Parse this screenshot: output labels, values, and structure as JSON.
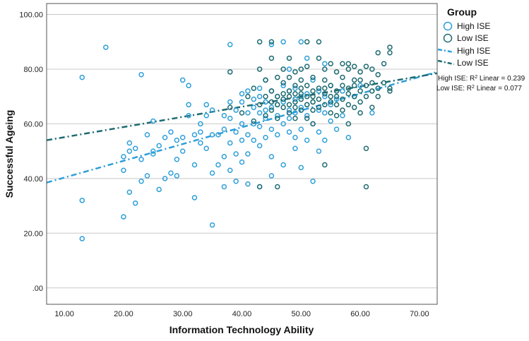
{
  "chart_data": {
    "type": "scatter",
    "xlabel": "Information Technology Ability",
    "ylabel": "Successful Ageing",
    "xlim": [
      7,
      73
    ],
    "ylim": [
      -6,
      104
    ],
    "x_ticks": [
      "10.00",
      "20.00",
      "30.00",
      "40.00",
      "50.00",
      "60.00",
      "70.00"
    ],
    "y_ticks": [
      ".00",
      "20.00",
      "40.00",
      "60.00",
      "80.00",
      "100.00"
    ],
    "grid": "horizontal",
    "legend_placement": "top-right",
    "legend": {
      "title": "Group",
      "items": [
        "High ISE",
        "Low ISE",
        "High ISE",
        "Low ISE"
      ]
    },
    "annotations": {
      "high_prefix": "High ISE: R",
      "low_prefix": "Low ISE: R",
      "sup": "2",
      "high_suffix": " Linear = 0.239",
      "low_suffix": " Linear = 0.077"
    },
    "colors": {
      "high": "#2e9fd9",
      "low": "#1e6b70",
      "grid": "#c8c8c8"
    },
    "fit_lines": [
      {
        "name": "High ISE",
        "x": [
          7,
          73
        ],
        "y": [
          38.5,
          79
        ]
      },
      {
        "name": "Low ISE",
        "x": [
          7,
          73
        ],
        "y": [
          54,
          78.5
        ]
      }
    ],
    "series": [
      {
        "name": "High ISE",
        "points": [
          [
            13,
            77
          ],
          [
            13,
            32
          ],
          [
            13,
            18
          ],
          [
            17,
            88
          ],
          [
            20,
            48
          ],
          [
            20,
            43
          ],
          [
            20,
            26
          ],
          [
            21,
            53
          ],
          [
            21,
            35
          ],
          [
            21,
            50
          ],
          [
            22,
            31
          ],
          [
            22,
            51
          ],
          [
            23,
            78
          ],
          [
            23,
            39
          ],
          [
            23,
            47
          ],
          [
            24,
            56
          ],
          [
            24,
            41
          ],
          [
            25,
            50
          ],
          [
            25,
            61
          ],
          [
            25,
            49
          ],
          [
            26,
            52
          ],
          [
            26,
            36
          ],
          [
            27,
            40
          ],
          [
            27,
            55
          ],
          [
            28,
            42
          ],
          [
            28,
            57
          ],
          [
            29,
            47
          ],
          [
            29,
            54
          ],
          [
            29,
            41
          ],
          [
            30,
            76
          ],
          [
            30,
            50
          ],
          [
            30,
            55
          ],
          [
            31,
            67
          ],
          [
            31,
            74
          ],
          [
            31,
            63
          ],
          [
            32,
            45
          ],
          [
            32,
            33
          ],
          [
            32,
            56
          ],
          [
            33,
            60
          ],
          [
            33,
            53
          ],
          [
            33,
            57
          ],
          [
            34,
            67
          ],
          [
            34,
            63
          ],
          [
            34,
            51
          ],
          [
            35,
            23
          ],
          [
            35,
            42
          ],
          [
            35,
            56
          ],
          [
            35,
            65
          ],
          [
            36,
            45
          ],
          [
            36,
            56
          ],
          [
            37,
            37
          ],
          [
            37,
            48
          ],
          [
            37,
            58
          ],
          [
            37,
            63
          ],
          [
            38,
            89
          ],
          [
            38,
            53
          ],
          [
            38,
            43
          ],
          [
            38,
            62
          ],
          [
            38,
            68
          ],
          [
            39,
            49
          ],
          [
            39,
            39
          ],
          [
            39,
            57
          ],
          [
            39,
            65
          ],
          [
            40,
            71
          ],
          [
            40,
            54
          ],
          [
            40,
            46
          ],
          [
            40,
            60
          ],
          [
            40,
            68
          ],
          [
            41,
            64
          ],
          [
            41,
            56
          ],
          [
            41,
            38
          ],
          [
            41,
            72
          ],
          [
            41,
            49
          ],
          [
            42,
            60
          ],
          [
            42,
            66
          ],
          [
            42,
            54
          ],
          [
            42,
            69
          ],
          [
            43,
            59
          ],
          [
            43,
            73
          ],
          [
            43,
            52
          ],
          [
            43,
            64
          ],
          [
            43,
            70
          ],
          [
            43,
            37
          ],
          [
            44,
            65
          ],
          [
            44,
            55
          ],
          [
            44,
            62
          ],
          [
            44,
            76
          ],
          [
            44,
            68
          ],
          [
            45,
            89
          ],
          [
            45,
            58
          ],
          [
            45,
            66
          ],
          [
            45,
            41
          ],
          [
            45,
            72
          ],
          [
            45,
            48
          ],
          [
            46,
            63
          ],
          [
            46,
            56
          ],
          [
            46,
            70
          ],
          [
            46,
            67
          ],
          [
            47,
            90
          ],
          [
            47,
            60
          ],
          [
            47,
            68
          ],
          [
            47,
            74
          ],
          [
            47,
            45
          ],
          [
            48,
            65
          ],
          [
            48,
            57
          ],
          [
            48,
            72
          ],
          [
            48,
            62
          ],
          [
            48,
            80
          ],
          [
            49,
            69
          ],
          [
            49,
            55
          ],
          [
            49,
            64
          ],
          [
            49,
            51
          ],
          [
            49,
            73
          ],
          [
            50,
            90
          ],
          [
            50,
            66
          ],
          [
            50,
            58
          ],
          [
            50,
            70
          ],
          [
            50,
            44
          ],
          [
            51,
            63
          ],
          [
            51,
            71
          ],
          [
            51,
            54
          ],
          [
            51,
            84
          ],
          [
            51,
            67
          ],
          [
            52,
            68
          ],
          [
            52,
            60
          ],
          [
            52,
            76
          ],
          [
            52,
            39
          ],
          [
            53,
            65
          ],
          [
            53,
            57
          ],
          [
            53,
            72
          ],
          [
            53,
            50
          ],
          [
            54,
            70
          ],
          [
            54,
            64
          ],
          [
            54,
            82
          ],
          [
            54,
            54
          ],
          [
            55,
            67
          ],
          [
            55,
            61
          ],
          [
            55,
            74
          ],
          [
            56,
            69
          ],
          [
            56,
            58
          ],
          [
            57,
            72
          ],
          [
            57,
            63
          ],
          [
            58,
            55
          ],
          [
            59,
            70
          ],
          [
            60,
            74
          ],
          [
            62,
            64
          ]
        ]
      },
      {
        "name": "Low ISE",
        "points": [
          [
            38,
            79
          ],
          [
            38,
            66
          ],
          [
            40,
            64
          ],
          [
            41,
            70
          ],
          [
            42,
            73
          ],
          [
            42,
            61
          ],
          [
            43,
            90
          ],
          [
            43,
            80
          ],
          [
            43,
            67
          ],
          [
            43,
            37
          ],
          [
            44,
            70
          ],
          [
            44,
            63
          ],
          [
            44,
            76
          ],
          [
            45,
            65
          ],
          [
            45,
            72
          ],
          [
            45,
            68
          ],
          [
            45,
            84
          ],
          [
            45,
            90
          ],
          [
            46,
            67
          ],
          [
            46,
            77
          ],
          [
            46,
            70
          ],
          [
            46,
            62
          ],
          [
            46,
            37
          ],
          [
            47,
            75
          ],
          [
            47,
            66
          ],
          [
            47,
            71
          ],
          [
            47,
            80
          ],
          [
            47,
            69
          ],
          [
            48,
            72
          ],
          [
            48,
            67
          ],
          [
            48,
            64
          ],
          [
            48,
            77
          ],
          [
            48,
            70
          ],
          [
            48,
            84
          ],
          [
            49,
            71
          ],
          [
            49,
            66
          ],
          [
            49,
            74
          ],
          [
            49,
            68
          ],
          [
            49,
            79
          ],
          [
            49,
            62
          ],
          [
            50,
            69
          ],
          [
            50,
            73
          ],
          [
            50,
            65
          ],
          [
            50,
            80
          ],
          [
            50,
            71
          ],
          [
            50,
            76
          ],
          [
            51,
            70
          ],
          [
            51,
            67
          ],
          [
            51,
            74
          ],
          [
            51,
            62
          ],
          [
            51,
            81
          ],
          [
            51,
            90
          ],
          [
            52,
            72
          ],
          [
            52,
            68
          ],
          [
            52,
            65
          ],
          [
            52,
            77
          ],
          [
            52,
            60
          ],
          [
            52,
            70
          ],
          [
            53,
            73
          ],
          [
            53,
            69
          ],
          [
            53,
            66
          ],
          [
            53,
            84
          ],
          [
            53,
            90
          ],
          [
            54,
            71
          ],
          [
            54,
            67
          ],
          [
            54,
            76
          ],
          [
            54,
            80
          ],
          [
            54,
            73
          ],
          [
            54,
            45
          ],
          [
            55,
            70
          ],
          [
            55,
            68
          ],
          [
            55,
            82
          ],
          [
            55,
            64
          ],
          [
            55,
            74
          ],
          [
            56,
            72
          ],
          [
            56,
            67
          ],
          [
            56,
            79
          ],
          [
            56,
            70
          ],
          [
            56,
            63
          ],
          [
            57,
            74
          ],
          [
            57,
            69
          ],
          [
            57,
            82
          ],
          [
            57,
            65
          ],
          [
            57,
            77
          ],
          [
            58,
            71
          ],
          [
            58,
            67
          ],
          [
            58,
            80
          ],
          [
            58,
            73
          ],
          [
            58,
            82
          ],
          [
            58,
            60
          ],
          [
            59,
            76
          ],
          [
            59,
            70
          ],
          [
            59,
            66
          ],
          [
            59,
            81
          ],
          [
            59,
            74
          ],
          [
            60,
            72
          ],
          [
            60,
            68
          ],
          [
            60,
            79
          ],
          [
            60,
            64
          ],
          [
            60,
            76
          ],
          [
            61,
            74
          ],
          [
            61,
            70
          ],
          [
            61,
            81
          ],
          [
            61,
            51
          ],
          [
            61,
            37
          ],
          [
            62,
            75
          ],
          [
            62,
            72
          ],
          [
            62,
            80
          ],
          [
            62,
            66
          ],
          [
            63,
            78
          ],
          [
            63,
            86
          ],
          [
            63,
            70
          ],
          [
            63,
            73
          ],
          [
            64,
            82
          ],
          [
            64,
            75
          ],
          [
            65,
            86
          ],
          [
            65,
            88
          ],
          [
            65,
            72
          ],
          [
            65,
            73
          ]
        ]
      }
    ]
  }
}
